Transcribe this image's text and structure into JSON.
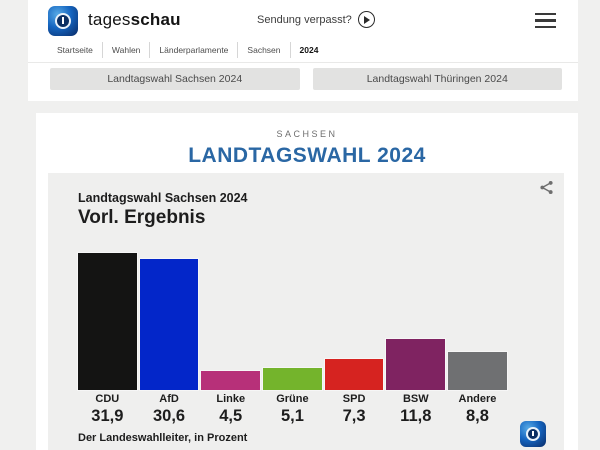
{
  "header": {
    "brand": {
      "regular": "tages",
      "bold": "schau"
    },
    "sendung_label": "Sendung verpasst?",
    "nav": {
      "items": [
        {
          "label": "Startseite"
        },
        {
          "label": "Wahlen"
        },
        {
          "label": "Länderparlamente"
        },
        {
          "label": "Sachsen"
        },
        {
          "label": "2024"
        }
      ],
      "active": "2024"
    },
    "quick_buttons": [
      {
        "label": "Landtagswahl Sachsen 2024"
      },
      {
        "label": "Landtagswahl Thüringen 2024"
      }
    ]
  },
  "page": {
    "kicker": "SACHSEN",
    "title": "LANDTAGSWAHL 2024",
    "title_color": "#2a67a4"
  },
  "chart_card": {
    "title": "Landtagswahl Sachsen 2024",
    "subtitle": "Vorl. Ergebnis",
    "source": "Der Landeswahlleiter, in Prozent",
    "share_icon_color": "#6e6e6e"
  },
  "chart_data": {
    "type": "bar",
    "title": "Landtagswahl Sachsen 2024 – Vorl. Ergebnis",
    "categories": [
      "CDU",
      "AfD",
      "Linke",
      "Grüne",
      "SPD",
      "BSW",
      "Andere"
    ],
    "values": [
      31.9,
      30.6,
      4.5,
      5.1,
      7.3,
      11.8,
      8.8
    ],
    "value_labels": [
      "31,9",
      "30,6",
      "4,5",
      "5,1",
      "7,3",
      "11,8",
      "8,8"
    ],
    "bar_colors": [
      "#141413",
      "#0326c9",
      "#b73079",
      "#74b42c",
      "#d62320",
      "#7f2361",
      "#6f7072"
    ],
    "unit": "Prozent",
    "ylim": [
      0,
      33
    ],
    "grid": false,
    "legend": false,
    "source": "Der Landeswahlleiter, in Prozent"
  },
  "colors": {
    "page_background": "#f0f0ef",
    "card_background": "#ffffff",
    "chart_background": "#efefee",
    "accent_blue": "#2a67a4"
  }
}
